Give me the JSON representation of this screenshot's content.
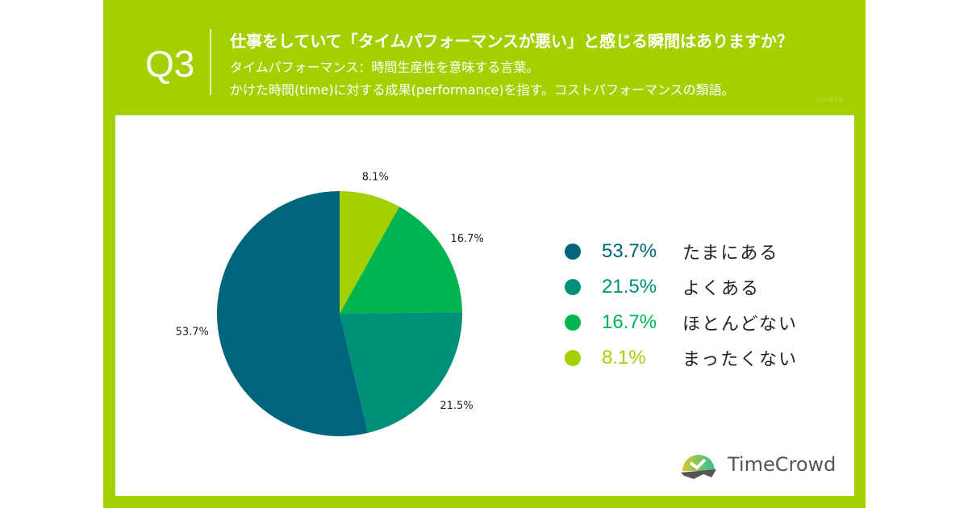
{
  "header": {
    "q": "Q3",
    "title": "仕事をしていて「タイムパフォーマンスが悪い」と感じる瞬間はありますか？",
    "sub1": "タイムパフォーマンス：時間生産性を意味する言葉。",
    "sub2": "かけた時間(time)に対する成果(performance)を指す。コストパフォーマンスの類語。",
    "n": "n=976"
  },
  "logo": {
    "text": "TimeCrowd"
  },
  "chart_data": {
    "type": "pie",
    "title": "仕事をしていて「タイムパフォーマンスが悪い」と感じる瞬間はありますか？",
    "start": "top",
    "direction": "clockwise",
    "slices": [
      {
        "label": "まったくない",
        "value": 8.1,
        "display": "8.1%",
        "color": "#a5d000"
      },
      {
        "label": "ほとんどない",
        "value": 16.7,
        "display": "16.7%",
        "color": "#00b450"
      },
      {
        "label": "よくある",
        "value": 21.5,
        "display": "21.5%",
        "color": "#008f78"
      },
      {
        "label": "たまにある",
        "value": 53.7,
        "display": "53.7%",
        "color": "#00657a"
      }
    ],
    "legend": [
      {
        "label": "たまにある",
        "display": "53.7%",
        "color": "#00657a"
      },
      {
        "label": "よくある",
        "display": "21.5%",
        "color": "#008f78"
      },
      {
        "label": "ほとんどない",
        "display": "16.7%",
        "color": "#00b450"
      },
      {
        "label": "まったくない",
        "display": "8.1%",
        "color": "#a5d000"
      }
    ],
    "legend_placement": "right"
  }
}
